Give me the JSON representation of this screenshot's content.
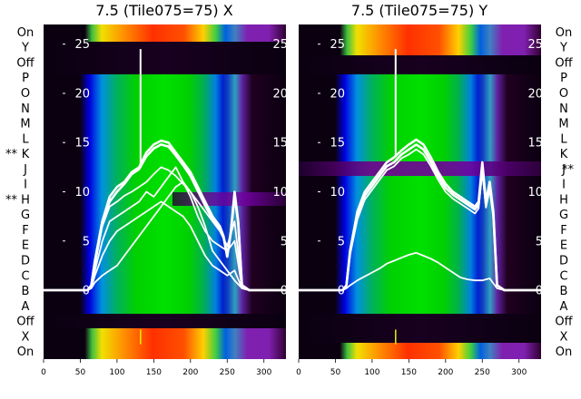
{
  "chart_data": [
    {
      "type": "heatmap",
      "title": "7.5 (Tile075=75) X",
      "xlim": [
        0,
        330
      ],
      "ylim": [
        -7,
        27
      ],
      "x_ticks": [
        0,
        50,
        100,
        150,
        200,
        250,
        300
      ],
      "y_ticks": [
        0,
        5,
        10,
        15,
        20,
        25
      ],
      "y_tick_labels": [
        "0",
        "5",
        "10",
        "15",
        "20",
        "25"
      ],
      "row_labels": [
        "On",
        "Y",
        "Off",
        "P",
        "O",
        "N",
        "M",
        "L",
        "K",
        "J",
        "I",
        "H",
        "G",
        "F",
        "E",
        "D",
        "C",
        "B",
        "A",
        "Off",
        "X",
        "On"
      ],
      "row_marks": [
        "",
        "",
        "",
        "",
        "",
        "",
        "",
        "",
        "**",
        "",
        "",
        "**",
        "",
        "",
        "",
        "",
        "",
        "",
        "",
        "",
        "",
        ""
      ],
      "mark_side": "left",
      "marker_x": 132,
      "series": [
        {
          "x": [
            0,
            60,
            65,
            70,
            80,
            90,
            100,
            110,
            120,
            130,
            140,
            150,
            160,
            170,
            180,
            190,
            200,
            210,
            220,
            230,
            240,
            245,
            250,
            255,
            260,
            265,
            270,
            280,
            300,
            330
          ],
          "values": [
            0,
            0,
            0.5,
            3,
            7,
            9.5,
            10.5,
            11,
            12,
            12.5,
            14,
            14.8,
            15.2,
            15,
            14,
            13,
            12,
            10.5,
            9,
            7.5,
            6.5,
            5.5,
            3.5,
            6,
            10,
            7,
            0.5,
            0,
            0,
            0
          ]
        },
        {
          "x": [
            0,
            60,
            65,
            70,
            80,
            90,
            100,
            110,
            120,
            130,
            140,
            150,
            160,
            170,
            180,
            190,
            200,
            210,
            220,
            230,
            240,
            245,
            250,
            255,
            260,
            265,
            270,
            280,
            300,
            330
          ],
          "values": [
            0,
            0,
            0.5,
            3,
            7,
            9,
            10,
            10.8,
            11.8,
            12.3,
            13.6,
            14.4,
            14.8,
            14.6,
            13.7,
            12.7,
            11.6,
            10.1,
            8.6,
            7.2,
            6.3,
            5.4,
            3.4,
            5.8,
            9.6,
            6.8,
            0.5,
            0,
            0,
            0
          ]
        },
        {
          "x": [
            0,
            60,
            65,
            70,
            80,
            90,
            100,
            110,
            120,
            130,
            140,
            150,
            160,
            170,
            180,
            190,
            200,
            210,
            220,
            230,
            240,
            250,
            260,
            270,
            280,
            330
          ],
          "values": [
            0,
            0,
            0.4,
            2.5,
            6.5,
            8.5,
            9,
            9.6,
            10,
            10.5,
            11,
            11.8,
            12.5,
            12.2,
            11.6,
            10.8,
            10,
            9,
            8,
            7,
            6,
            4.5,
            7,
            0.4,
            0,
            0
          ]
        },
        {
          "x": [
            0,
            60,
            65,
            70,
            80,
            90,
            100,
            110,
            120,
            130,
            140,
            150,
            160,
            170,
            180,
            190,
            200,
            210,
            220,
            230,
            240,
            250,
            260,
            270,
            280,
            330
          ],
          "values": [
            0,
            0,
            0.3,
            2,
            5,
            7,
            7.5,
            8,
            8.5,
            9,
            10,
            9.5,
            10.5,
            11.5,
            12.5,
            11,
            9.5,
            7.5,
            6,
            5,
            4.5,
            4,
            5,
            0.3,
            0,
            0
          ]
        },
        {
          "x": [
            0,
            60,
            65,
            70,
            80,
            90,
            100,
            110,
            120,
            130,
            140,
            150,
            160,
            170,
            180,
            190,
            200,
            210,
            220,
            230,
            240,
            250,
            260,
            270,
            280,
            330
          ],
          "values": [
            0,
            0,
            0.3,
            1.5,
            3.5,
            5,
            6,
            6.5,
            7,
            7.5,
            8,
            8.5,
            9,
            8.5,
            8,
            7.5,
            6.5,
            5,
            3.5,
            2.5,
            2,
            1.5,
            2,
            0.2,
            0,
            0
          ]
        },
        {
          "x": [
            0,
            60,
            65,
            70,
            80,
            90,
            100,
            110,
            120,
            130,
            140,
            150,
            160,
            170,
            180,
            190,
            200,
            210,
            220,
            230,
            240,
            250,
            260,
            270,
            280,
            330
          ],
          "values": [
            0,
            0,
            0.2,
            0.8,
            1.5,
            2,
            2.5,
            3.5,
            4.5,
            5.5,
            6.5,
            7.5,
            8.5,
            9.5,
            10.5,
            11,
            10,
            8.5,
            6.5,
            4,
            3,
            2,
            1,
            0.2,
            0,
            0
          ]
        }
      ]
    },
    {
      "type": "heatmap",
      "title": "7.5 (Tile075=75) Y",
      "xlim": [
        0,
        330
      ],
      "ylim": [
        -7,
        27
      ],
      "x_ticks": [
        0,
        50,
        100,
        150,
        200,
        250,
        300
      ],
      "y_ticks": [
        0,
        5,
        10,
        15,
        20,
        25
      ],
      "y_tick_labels": [
        "0",
        "5",
        "10",
        "15",
        "20",
        "25"
      ],
      "row_labels": [
        "On",
        "Y",
        "Off",
        "P",
        "O",
        "N",
        "M",
        "L",
        "K",
        "J",
        "I",
        "H",
        "G",
        "F",
        "E",
        "D",
        "C",
        "B",
        "A",
        "Off",
        "X",
        "On"
      ],
      "row_marks": [
        "",
        "",
        "",
        "",
        "",
        "",
        "",
        "",
        "",
        "**",
        "",
        "",
        "",
        "",
        "",
        "",
        "",
        "",
        "",
        "",
        "",
        ""
      ],
      "mark_side": "right",
      "marker_x": 132,
      "series": [
        {
          "x": [
            0,
            60,
            65,
            70,
            80,
            90,
            100,
            110,
            120,
            130,
            140,
            150,
            160,
            170,
            180,
            190,
            200,
            210,
            220,
            230,
            240,
            245,
            250,
            255,
            260,
            265,
            270,
            280,
            300,
            330
          ],
          "values": [
            0,
            0,
            0.5,
            4,
            8,
            10,
            11,
            12,
            13,
            13.5,
            14.2,
            14.8,
            15.3,
            14.8,
            13.5,
            12,
            10.8,
            10,
            9.5,
            9,
            8.5,
            9,
            13,
            9,
            11,
            8,
            0.5,
            0,
            0,
            0
          ]
        },
        {
          "x": [
            0,
            60,
            65,
            70,
            80,
            90,
            100,
            110,
            120,
            130,
            140,
            150,
            160,
            170,
            180,
            190,
            200,
            210,
            220,
            230,
            240,
            245,
            250,
            255,
            260,
            265,
            270,
            280,
            300,
            330
          ],
          "values": [
            0,
            0,
            0.5,
            3.8,
            7.6,
            9.6,
            10.6,
            11.6,
            12.6,
            13,
            13.8,
            14.3,
            14.8,
            14.3,
            13,
            11.6,
            10.4,
            9.7,
            9.2,
            8.7,
            8.2,
            8.7,
            12.5,
            8.7,
            10.6,
            7.7,
            0.5,
            0,
            0,
            0
          ]
        },
        {
          "x": [
            0,
            60,
            65,
            70,
            80,
            90,
            100,
            110,
            120,
            130,
            140,
            150,
            160,
            170,
            180,
            190,
            200,
            210,
            220,
            230,
            240,
            245,
            250,
            255,
            260,
            265,
            270,
            280,
            300,
            330
          ],
          "values": [
            0,
            0,
            0.5,
            3.6,
            7.2,
            9.2,
            10.2,
            11.2,
            12.2,
            12.6,
            13.4,
            13.8,
            14.3,
            13.8,
            12.6,
            11.2,
            10,
            9.3,
            8.8,
            8.3,
            7.8,
            8.3,
            12,
            8.4,
            10.2,
            7.4,
            0.5,
            0,
            0,
            0
          ]
        },
        {
          "x": [
            0,
            60,
            65,
            70,
            80,
            90,
            100,
            110,
            120,
            130,
            140,
            150,
            160,
            170,
            180,
            190,
            200,
            210,
            220,
            230,
            240,
            250,
            260,
            270,
            280,
            330
          ],
          "values": [
            0,
            0,
            0.2,
            0.5,
            1,
            1.4,
            1.8,
            2.2,
            2.7,
            3,
            3.3,
            3.6,
            3.8,
            3.5,
            3.2,
            2.8,
            2.3,
            1.8,
            1.3,
            1.1,
            1,
            1,
            1.2,
            0.2,
            0,
            0
          ]
        }
      ]
    }
  ]
}
